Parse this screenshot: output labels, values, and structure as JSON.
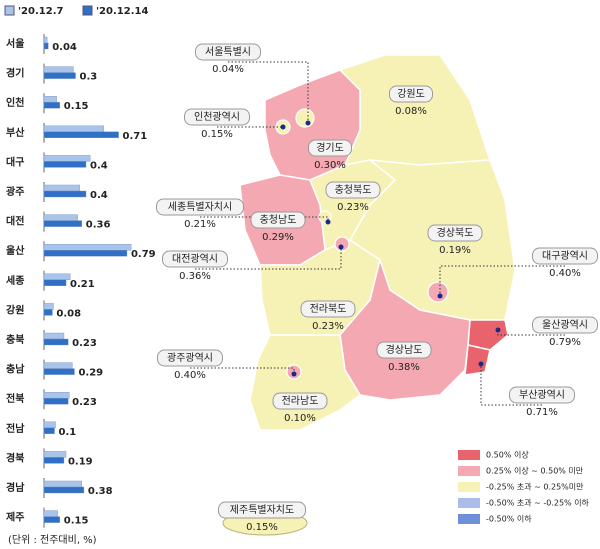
{
  "chart_data": {
    "type": "bar",
    "orientation": "horizontal",
    "categories": [
      "서울",
      "경기",
      "인천",
      "부산",
      "대구",
      "광주",
      "대전",
      "울산",
      "세종",
      "강원",
      "충북",
      "충남",
      "전북",
      "전남",
      "경북",
      "경남",
      "제주"
    ],
    "series": [
      {
        "name": "'20.12.7",
        "color": "#a9c4ea",
        "values": [
          0.03,
          0.28,
          0.12,
          0.57,
          0.44,
          0.34,
          0.32,
          0.83,
          0.25,
          0.09,
          0.19,
          0.27,
          0.24,
          0.11,
          0.21,
          0.36,
          0.13
        ]
      },
      {
        "name": "'20.12.14",
        "color": "#2f6fc6",
        "values": [
          0.04,
          0.3,
          0.15,
          0.71,
          0.4,
          0.4,
          0.36,
          0.79,
          0.21,
          0.08,
          0.23,
          0.29,
          0.23,
          0.1,
          0.19,
          0.38,
          0.15
        ]
      }
    ],
    "note": "(단위 : 전주대비, %)"
  },
  "map": {
    "regions": [
      {
        "name": "서울특별시",
        "value": "0.04%",
        "color": "#f6f2b5"
      },
      {
        "name": "강원도",
        "value": "0.08%",
        "color": "#f6f2b5"
      },
      {
        "name": "인천광역시",
        "value": "0.15%",
        "color": "#f6f2b5"
      },
      {
        "name": "경기도",
        "value": "0.30%",
        "color": "#f4a9b2"
      },
      {
        "name": "충청북도",
        "value": "0.23%",
        "color": "#f6f2b5"
      },
      {
        "name": "세종특별자치시",
        "value": "0.21%",
        "color": "#f6f2b5"
      },
      {
        "name": "충청남도",
        "value": "0.29%",
        "color": "#f4a9b2"
      },
      {
        "name": "대전광역시",
        "value": "0.36%",
        "color": "#f4a9b2"
      },
      {
        "name": "경상북도",
        "value": "0.19%",
        "color": "#f6f2b5"
      },
      {
        "name": "대구광역시",
        "value": "0.40%",
        "color": "#f4a9b2"
      },
      {
        "name": "전라북도",
        "value": "0.23%",
        "color": "#f6f2b5"
      },
      {
        "name": "울산광역시",
        "value": "0.79%",
        "color": "#e8636b"
      },
      {
        "name": "광주광역시",
        "value": "0.40%",
        "color": "#f4a9b2"
      },
      {
        "name": "경상남도",
        "value": "0.38%",
        "color": "#f4a9b2"
      },
      {
        "name": "부산광역시",
        "value": "0.71%",
        "color": "#e8636b"
      },
      {
        "name": "전라남도",
        "value": "0.10%",
        "color": "#f6f2b5"
      },
      {
        "name": "제주특별자치도",
        "value": "0.15%",
        "color": "#f6f2b5"
      }
    ],
    "legend": [
      {
        "label": "0.50% 이상",
        "color": "#e8636b"
      },
      {
        "label": "0.25% 이상 ~ 0.50% 미만",
        "color": "#f4a9b2"
      },
      {
        "label": "-0.25% 초과 ~  0.25%미만",
        "color": "#f6f2b5"
      },
      {
        "label": "-0.50% 초과 ~ -0.25% 이하",
        "color": "#a9bde8"
      },
      {
        "label": "-0.50% 이하",
        "color": "#6f8fd8"
      }
    ]
  }
}
